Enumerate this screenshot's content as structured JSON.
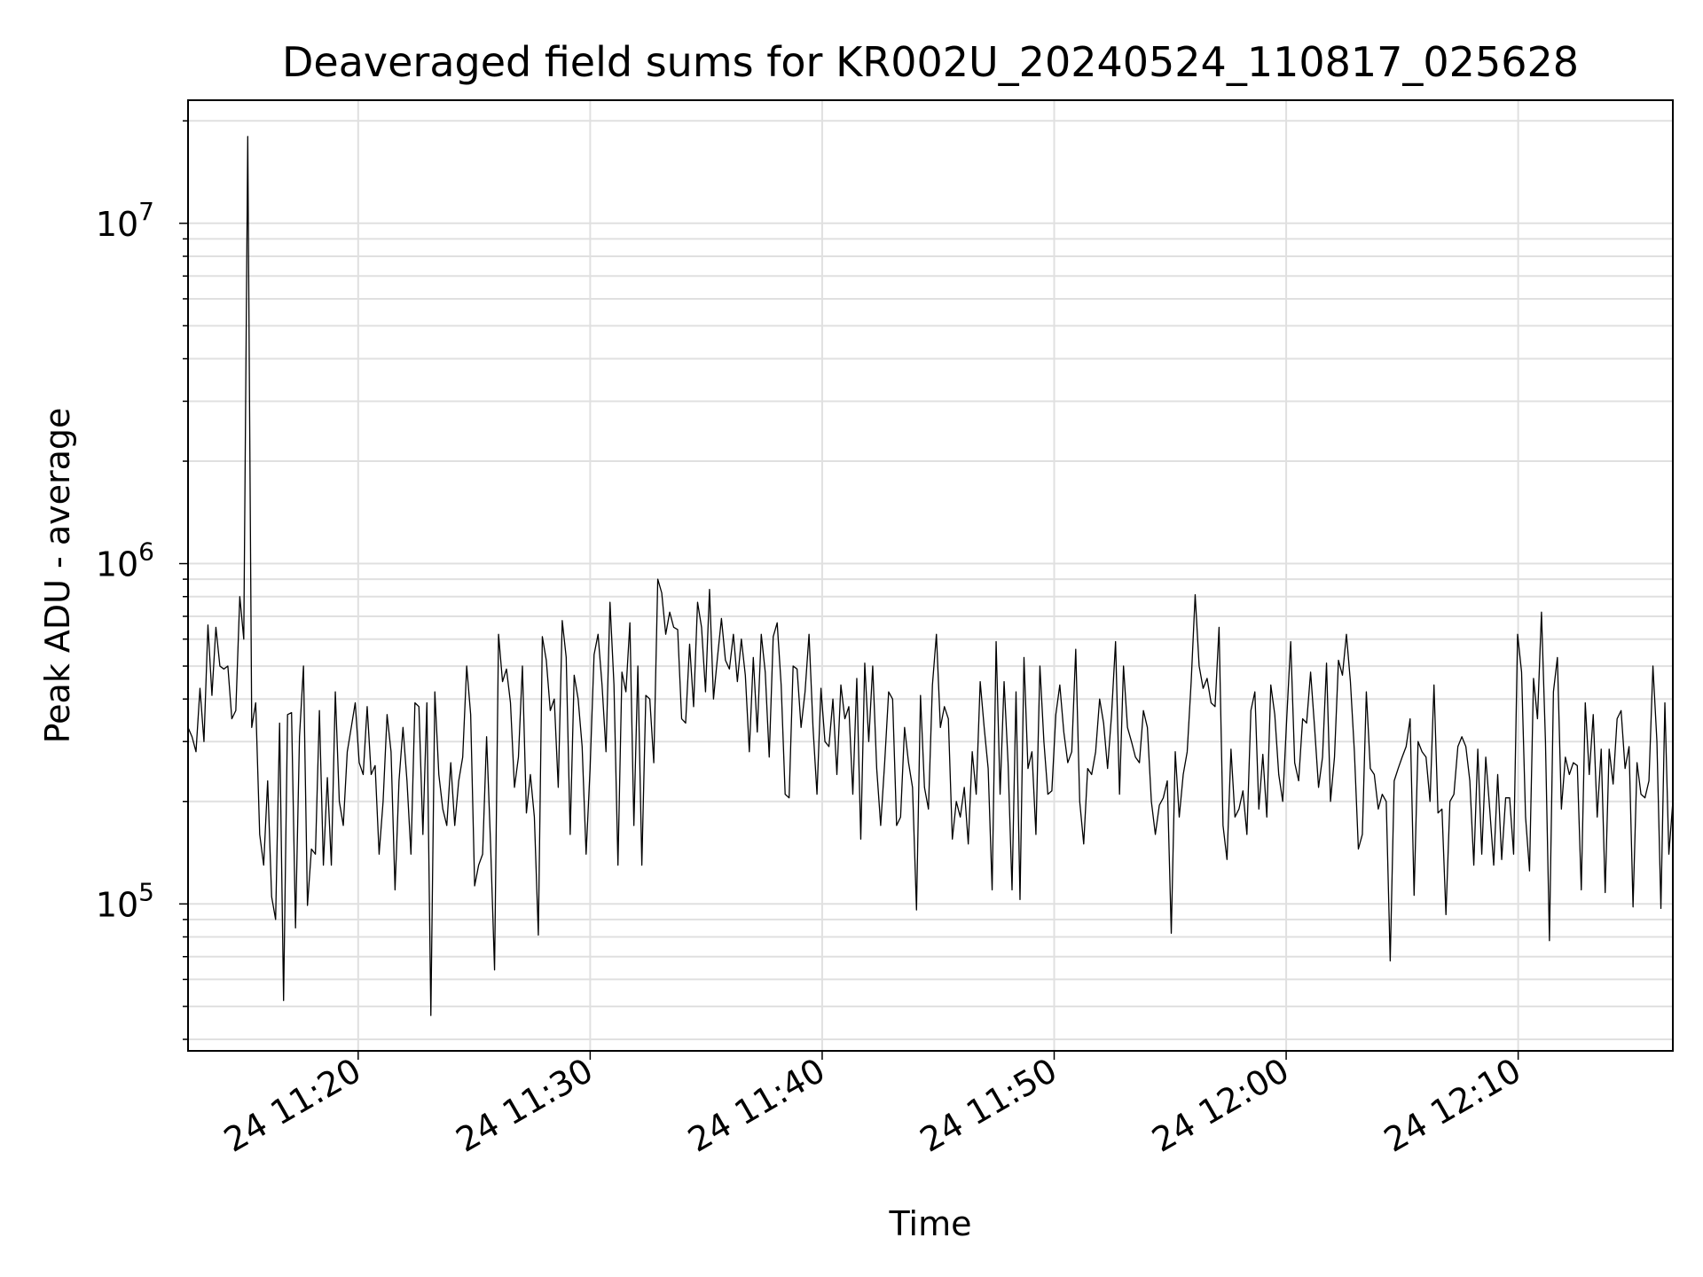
{
  "chart_data": {
    "type": "line",
    "title": "Deaveraged field sums for KR002U_20240524_110817_025628",
    "xlabel": "Time",
    "ylabel": "Peak ADU - average",
    "yscale": "log",
    "ylim": [
      37000,
      23000000
    ],
    "xlim": [
      "2024-05-24 11:12:40",
      "2024-05-24 12:16:40"
    ],
    "x_ticks": [
      "24 11:20",
      "24 11:30",
      "24 11:40",
      "24 11:50",
      "24 12:00",
      "24 12:10"
    ],
    "y_ticks": [
      {
        "base": "10",
        "exp": "5"
      },
      {
        "base": "10",
        "exp": "6"
      },
      {
        "base": "10",
        "exp": "7"
      }
    ],
    "grid": true,
    "line_color": "#000000",
    "grid_color": "#e0e0e0",
    "x_start": "2024-05-24 11:12:40",
    "x_end": "2024-05-24 12:16:40",
    "series": [
      {
        "values": [
          330000,
          310000,
          280000,
          430000,
          300000,
          660000,
          410000,
          650000,
          500000,
          490000,
          500000,
          350000,
          370000,
          800000,
          600000,
          18000000,
          330000,
          390000,
          160000,
          130000,
          230000,
          105000,
          90000,
          340000,
          52000,
          360000,
          365000,
          85000,
          310000,
          500000,
          99000,
          145000,
          140000,
          370000,
          130000,
          235000,
          130000,
          420000,
          200000,
          170000,
          280000,
          330000,
          390000,
          260000,
          240000,
          380000,
          240000,
          255000,
          140000,
          200000,
          360000,
          280000,
          110000,
          230000,
          330000,
          230000,
          140000,
          390000,
          380000,
          160000,
          390000,
          47000,
          420000,
          240000,
          190000,
          170000,
          260000,
          170000,
          230000,
          270000,
          500000,
          360000,
          113000,
          130000,
          140000,
          310000,
          150000,
          64000,
          620000,
          450000,
          490000,
          390000,
          220000,
          270000,
          500000,
          185000,
          240000,
          180000,
          81000,
          610000,
          520000,
          370000,
          400000,
          220000,
          680000,
          530000,
          160000,
          470000,
          400000,
          290000,
          140000,
          250000,
          540000,
          620000,
          440000,
          280000,
          770000,
          440000,
          130000,
          480000,
          420000,
          670000,
          170000,
          500000,
          130000,
          410000,
          400000,
          260000,
          900000,
          820000,
          620000,
          720000,
          650000,
          640000,
          350000,
          340000,
          580000,
          380000,
          770000,
          650000,
          420000,
          840000,
          400000,
          530000,
          690000,
          520000,
          490000,
          620000,
          450000,
          600000,
          470000,
          280000,
          530000,
          320000,
          620000,
          480000,
          270000,
          610000,
          670000,
          440000,
          210000,
          205000,
          500000,
          490000,
          330000,
          420000,
          620000,
          330000,
          210000,
          430000,
          300000,
          290000,
          400000,
          240000,
          440000,
          350000,
          380000,
          210000,
          460000,
          155000,
          510000,
          300000,
          500000,
          250000,
          170000,
          260000,
          420000,
          400000,
          170000,
          180000,
          330000,
          260000,
          220000,
          96000,
          410000,
          220000,
          190000,
          440000,
          620000,
          330000,
          380000,
          350000,
          155000,
          200000,
          180000,
          220000,
          150000,
          280000,
          210000,
          450000,
          330000,
          250000,
          110000,
          590000,
          210000,
          450000,
          260000,
          110000,
          420000,
          103000,
          530000,
          250000,
          280000,
          160000,
          500000,
          300000,
          210000,
          215000,
          360000,
          440000,
          320000,
          260000,
          280000,
          560000,
          200000,
          150000,
          250000,
          240000,
          280000,
          400000,
          340000,
          250000,
          360000,
          590000,
          210000,
          500000,
          330000,
          300000,
          270000,
          260000,
          370000,
          330000,
          200000,
          160000,
          195000,
          205000,
          230000,
          82000,
          280000,
          180000,
          240000,
          280000,
          450000,
          810000,
          500000,
          430000,
          460000,
          390000,
          380000,
          650000,
          170000,
          135000,
          285000,
          180000,
          190000,
          215000,
          160000,
          370000,
          420000,
          190000,
          275000,
          180000,
          440000,
          360000,
          240000,
          200000,
          350000,
          590000,
          260000,
          230000,
          350000,
          340000,
          480000,
          330000,
          220000,
          270000,
          510000,
          200000,
          270000,
          520000,
          470000,
          620000,
          450000,
          280000,
          145000,
          160000,
          420000,
          250000,
          240000,
          190000,
          210000,
          200000,
          68000,
          230000,
          250000,
          270000,
          290000,
          350000,
          106000,
          300000,
          280000,
          270000,
          200000,
          440000,
          185000,
          190000,
          93000,
          200000,
          210000,
          290000,
          310000,
          290000,
          230000,
          130000,
          285000,
          140000,
          270000,
          190000,
          130000,
          240000,
          135000,
          205000,
          205000,
          140000,
          620000,
          480000,
          180000,
          125000,
          460000,
          350000,
          720000,
          300000,
          78000,
          420000,
          530000,
          190000,
          270000,
          240000,
          260000,
          255000,
          110000,
          390000,
          240000,
          360000,
          180000,
          285000,
          108000,
          285000,
          225000,
          350000,
          370000,
          250000,
          290000,
          98000,
          260000,
          210000,
          205000,
          230000,
          500000,
          300000,
          97000,
          390000,
          140000,
          200000
        ]
      }
    ]
  }
}
